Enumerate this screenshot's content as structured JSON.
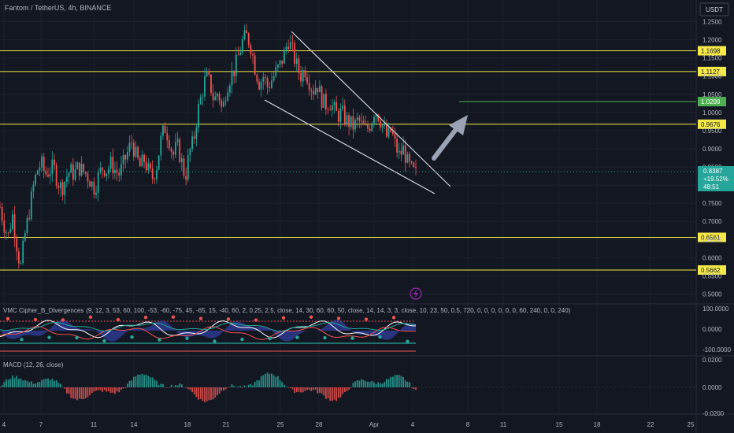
{
  "header": {
    "symbol_title": "Fantom / TetherUS, 4h, BINANCE",
    "currency": "USDT"
  },
  "colors": {
    "bg": "#131722",
    "up": "#26a69a",
    "down": "#ef5350",
    "level": "#f5e94a",
    "target": "#4caf50",
    "wedge": "#d1d4dc",
    "arrow": "#9aa3b5"
  },
  "chart_data": [
    {
      "type": "candlestick",
      "title": "Fantom / TetherUS, 4h, BINANCE",
      "ylim": [
        0.48,
        1.27
      ],
      "y_ticks": [
        "1.2500",
        "1.2000",
        "1.1500",
        "1.1000",
        "1.0500",
        "1.0000",
        "0.9500",
        "0.9000",
        "0.8500",
        "0.8000",
        "0.7500",
        "0.7000",
        "0.6500",
        "0.6000",
        "0.5500",
        "0.5000"
      ],
      "x_ticks": [
        "4",
        "7",
        "11",
        "14",
        "18",
        "21",
        "25",
        "28",
        "Apr",
        "4",
        "8",
        "11",
        "15",
        "18",
        "22",
        "25"
      ],
      "price_badge": {
        "value": "0.8387",
        "change": "+19.52%",
        "countdown": "48:51"
      },
      "levels": [
        {
          "label": "1.1698",
          "value": 1.1698
        },
        {
          "label": "1.1127",
          "value": 1.1127
        },
        {
          "label": "0.9676",
          "value": 0.9676
        },
        {
          "label": "0.6561",
          "value": 0.6561
        },
        {
          "label": "0.5662",
          "value": 0.5662
        }
      ],
      "target_level": {
        "label": "1.0299",
        "value": 1.0299
      },
      "path_points": [
        0.74,
        0.69,
        0.66,
        0.72,
        0.64,
        0.57,
        0.66,
        0.72,
        0.79,
        0.84,
        0.86,
        0.83,
        0.84,
        0.85,
        0.81,
        0.79,
        0.82,
        0.84,
        0.83,
        0.85,
        0.84,
        0.83,
        0.81,
        0.79,
        0.83,
        0.85,
        0.84,
        0.86,
        0.84,
        0.83,
        0.86,
        0.89,
        0.92,
        0.88,
        0.85,
        0.87,
        0.84,
        0.82,
        0.85,
        0.92,
        0.96,
        0.93,
        0.88,
        0.91,
        0.87,
        0.82,
        0.89,
        0.92,
        1.0,
        1.05,
        1.1,
        1.08,
        1.03,
        1.06,
        1.0,
        1.07,
        1.1,
        1.12,
        1.16,
        1.2,
        1.21,
        1.18,
        1.12,
        1.08,
        1.1,
        1.07,
        1.09,
        1.11,
        1.13,
        1.16,
        1.2,
        1.17,
        1.13,
        1.1,
        1.12,
        1.09,
        1.06,
        1.08,
        1.04,
        1.02,
        1.03,
        1.01,
        0.99,
        1.0,
        0.98,
        0.97,
        0.96,
        0.98,
        0.96,
        0.95,
        0.97,
        1.01,
        0.99,
        0.96,
        0.93,
        0.95,
        0.91,
        0.88,
        0.9,
        0.86,
        0.84,
        0.83
      ]
    },
    {
      "type": "line",
      "title": "VMC Cipher_B_Divergences",
      "params": "(9, 12, 3, 53, 60, 100, -53, -60, -75, 45, -65, 15, -40, 60, 2, 0.25, 2.5, close, 14, 30, 60, 60, 50, close, 14, 14, 3, 3, close, 10, 23, 50, 0.5, 720, 0, 0, 0, 0, 0, 0, 60, 240, 0, 0, 240)",
      "y_ticks": [
        "100.0000",
        "0.0000",
        "-100.0000"
      ]
    },
    {
      "type": "bar",
      "title": "MACD (12, 26, close)",
      "y_ticks": [
        "0.0200",
        "0.0000",
        "-0.0200"
      ]
    }
  ]
}
